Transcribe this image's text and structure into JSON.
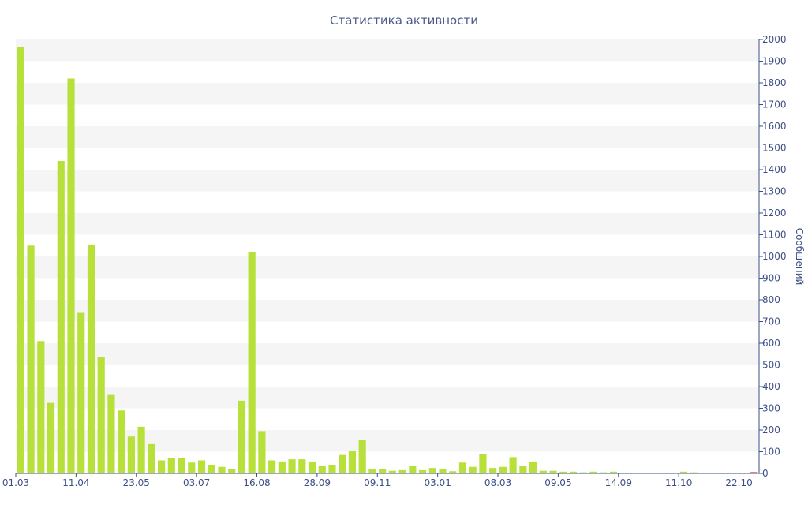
{
  "chart_data": {
    "type": "bar",
    "title": "Статистика активности",
    "ylabel": "Сообщений",
    "ylim": [
      0,
      2000
    ],
    "y_ticks": [
      0,
      100,
      200,
      300,
      400,
      500,
      600,
      700,
      800,
      900,
      1000,
      1100,
      1200,
      1300,
      1400,
      1500,
      1600,
      1700,
      1800,
      1900,
      2000
    ],
    "x_tick_labels": [
      {
        "index": 0,
        "label": "01.03"
      },
      {
        "index": 6,
        "label": "11.04"
      },
      {
        "index": 12,
        "label": "23.05"
      },
      {
        "index": 18,
        "label": "03.07"
      },
      {
        "index": 24,
        "label": "16.08"
      },
      {
        "index": 30,
        "label": "28.09"
      },
      {
        "index": 36,
        "label": "09.11"
      },
      {
        "index": 42,
        "label": "03.01"
      },
      {
        "index": 48,
        "label": "08.03"
      },
      {
        "index": 54,
        "label": "09.05"
      },
      {
        "index": 60,
        "label": "14.09"
      },
      {
        "index": 66,
        "label": "11.10"
      },
      {
        "index": 72,
        "label": "22.10"
      }
    ],
    "series": [
      {
        "values": [
          1965,
          1050,
          610,
          325,
          1440,
          1820,
          740,
          1055,
          535,
          365,
          290,
          170,
          215,
          135,
          60,
          70,
          70,
          50,
          60,
          40,
          30,
          20,
          335,
          1020,
          195,
          60,
          55,
          65,
          65,
          55,
          35,
          40,
          85,
          105,
          155,
          20,
          20,
          12,
          15,
          35,
          15,
          25,
          20,
          10,
          50,
          30,
          90,
          25,
          30,
          75,
          35,
          55,
          12,
          12,
          8,
          8,
          5,
          8,
          5,
          8,
          3,
          3,
          2,
          2,
          2,
          3,
          8,
          5,
          3,
          3,
          3,
          3,
          3,
          6
        ],
        "colors": {
          "default": "#b8e03a",
          "last": "#e03a3a"
        }
      }
    ],
    "grid": true,
    "grid_band_color": "#f5f5f5"
  }
}
